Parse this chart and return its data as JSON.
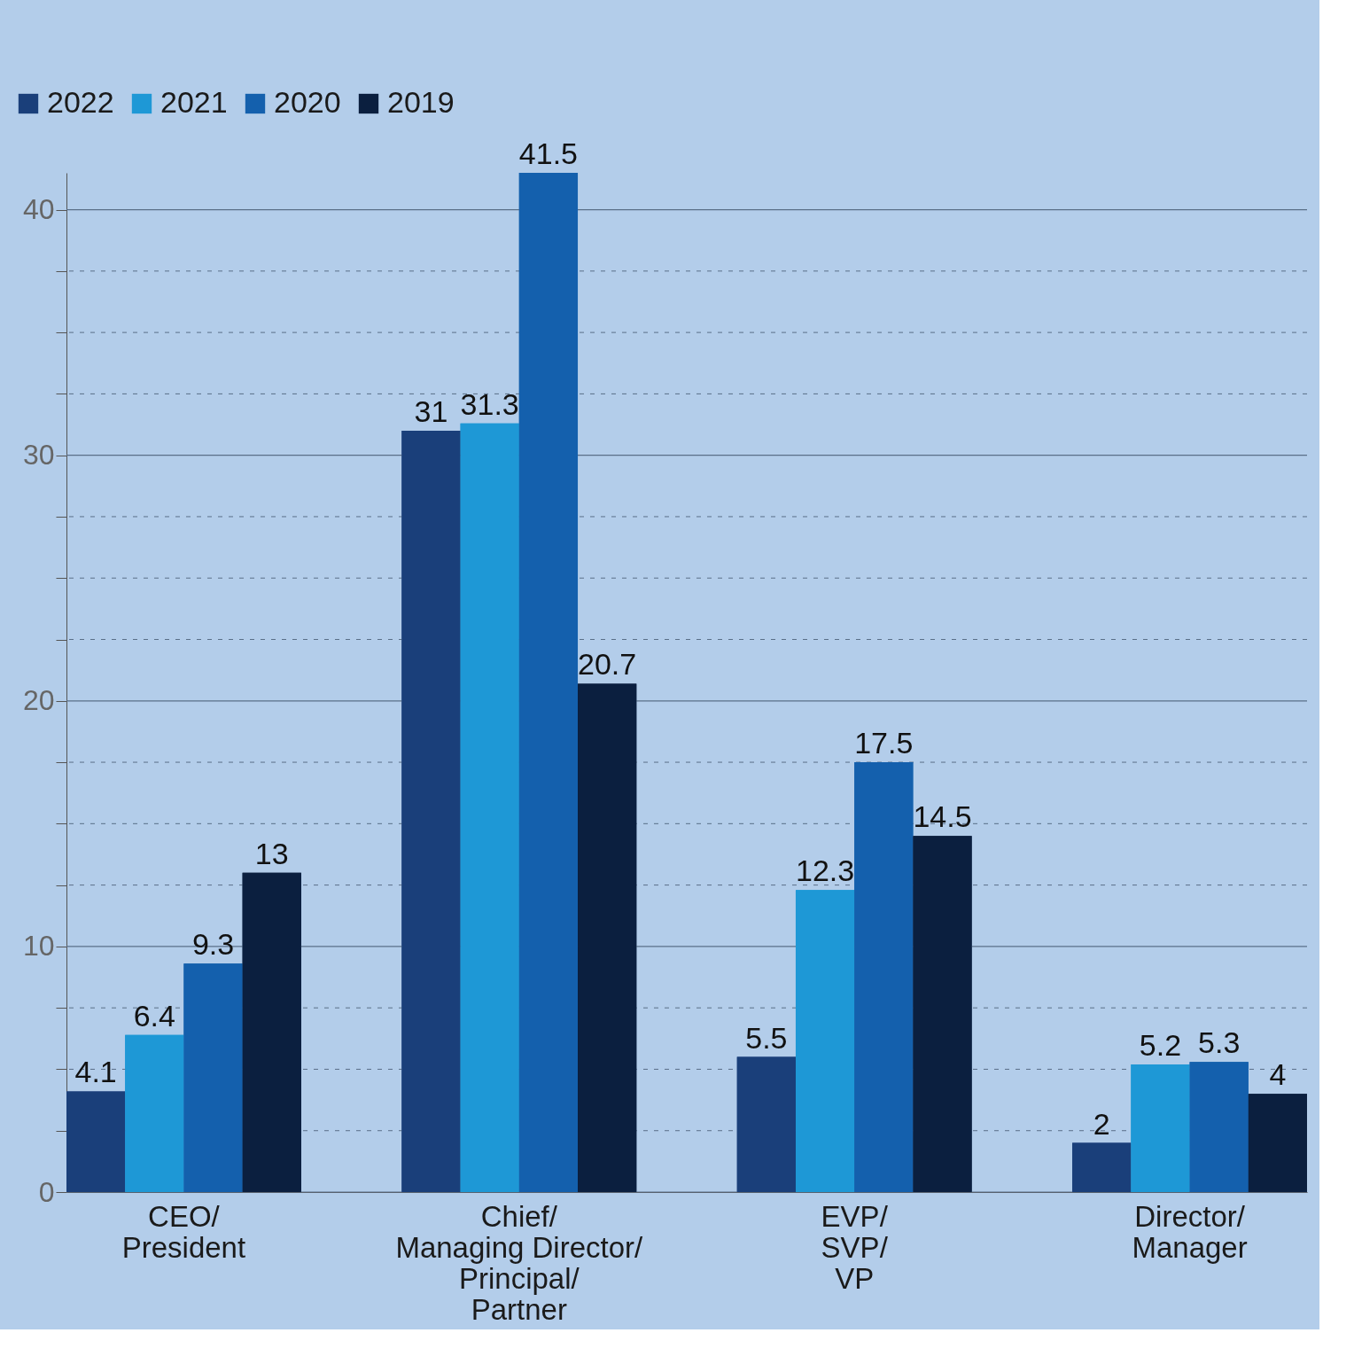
{
  "chart_data": {
    "type": "bar",
    "categories": [
      "CEO/ President",
      "Chief/ Managing Director/ Principal/ Partner",
      "EVP/ SVP/ VP",
      "Director/ Manager"
    ],
    "series": [
      {
        "name": "2022",
        "color": "#1a3f7a",
        "values": [
          4.1,
          31,
          5.5,
          2
        ]
      },
      {
        "name": "2021",
        "color": "#1e98d6",
        "values": [
          6.4,
          31.3,
          12.3,
          5.2
        ]
      },
      {
        "name": "2020",
        "color": "#1460ad",
        "values": [
          9.3,
          41.5,
          17.5,
          5.3
        ]
      },
      {
        "name": "2019",
        "color": "#0b1f3f",
        "values": [
          13,
          20.7,
          14.5,
          4
        ]
      }
    ],
    "ylim": [
      0,
      41.5
    ],
    "yticks": [
      0,
      {
        "value": 2.5,
        "label": null
      },
      {
        "value": 5,
        "label": null
      },
      {
        "value": 7.5,
        "label": null
      },
      10,
      {
        "value": 12.5,
        "label": null
      },
      {
        "value": 15,
        "label": null
      },
      {
        "value": 17.5,
        "label": null
      },
      20,
      {
        "value": 22.5,
        "label": null
      },
      {
        "value": 25,
        "label": null
      },
      {
        "value": 27.5,
        "label": null
      },
      30,
      {
        "value": 32.5,
        "label": null
      },
      {
        "value": 35,
        "label": null
      },
      {
        "value": 37.5,
        "label": null
      },
      40
    ],
    "grid": "y",
    "legend": "top left",
    "data_labels": true
  }
}
